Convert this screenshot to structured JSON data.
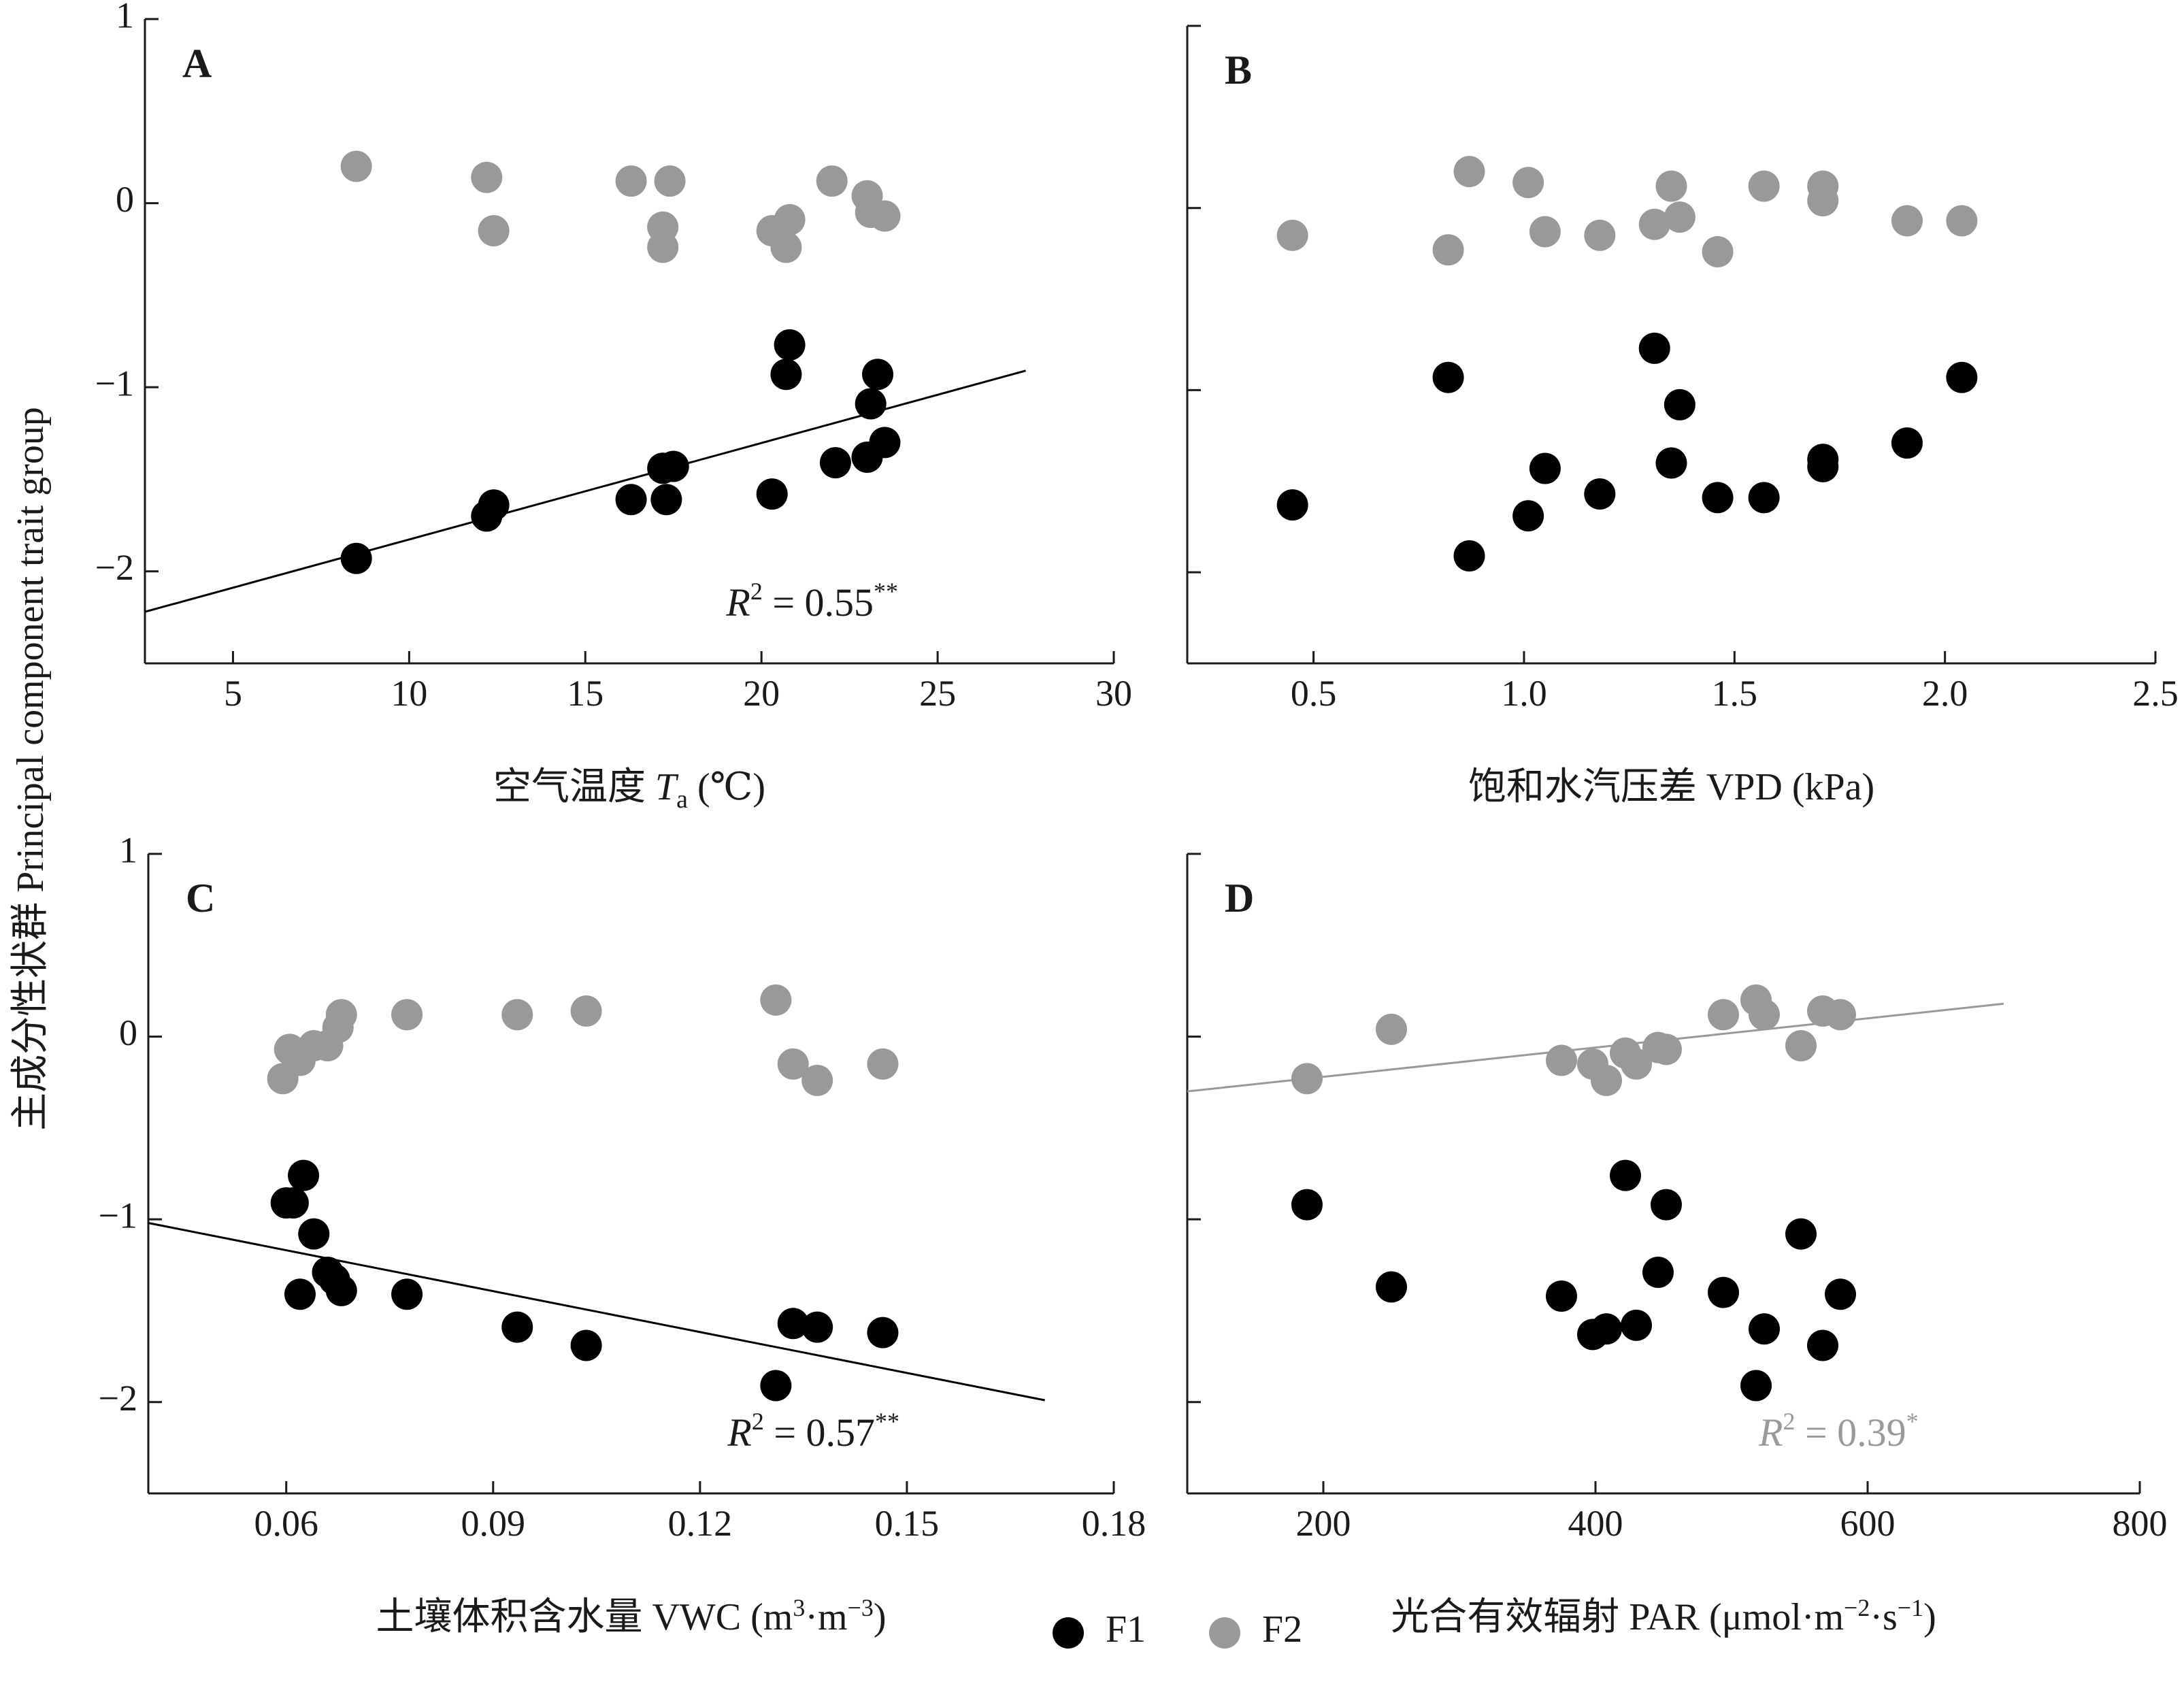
{
  "colors": {
    "F1": "#000000",
    "F2": "#999999",
    "axis": "#1a1a1a"
  },
  "ylabel": "主成分性状群 Principal component trait group",
  "legend": [
    {
      "name": "F1",
      "color": "#000000"
    },
    {
      "name": "F2",
      "color": "#999999"
    }
  ],
  "chart_data": [
    {
      "type": "scatter",
      "panel": "A",
      "xlabel": {
        "main": "空气温度 ",
        "var": "T",
        "sub": "a",
        "unit": " (℃)"
      },
      "xlim": [
        2.5,
        30
      ],
      "ylim": [
        -2.5,
        1
      ],
      "xticks": [
        5,
        10,
        15,
        20,
        25,
        30
      ],
      "yticks": [
        -2,
        -1,
        0,
        1
      ],
      "yticklabels": [
        "−2",
        "−1",
        "0",
        "1"
      ],
      "series": [
        {
          "name": "F1",
          "color": "#000000",
          "points": [
            [
              8.5,
              -1.93
            ],
            [
              12.2,
              -1.7
            ],
            [
              12.4,
              -1.64
            ],
            [
              16.3,
              -1.61
            ],
            [
              17.2,
              -1.44
            ],
            [
              17.3,
              -1.61
            ],
            [
              17.5,
              -1.43
            ],
            [
              20.3,
              -1.58
            ],
            [
              20.7,
              -0.93
            ],
            [
              20.8,
              -0.77
            ],
            [
              22.1,
              -1.41
            ],
            [
              23.0,
              -1.38
            ],
            [
              23.1,
              -1.09
            ],
            [
              23.3,
              -0.93
            ],
            [
              23.5,
              -1.3
            ]
          ]
        },
        {
          "name": "F2",
          "color": "#999999",
          "points": [
            [
              8.5,
              0.2
            ],
            [
              12.2,
              0.14
            ],
            [
              12.4,
              -0.15
            ],
            [
              16.3,
              0.12
            ],
            [
              17.2,
              -0.13
            ],
            [
              17.2,
              -0.24
            ],
            [
              17.4,
              0.12
            ],
            [
              20.3,
              -0.15
            ],
            [
              20.7,
              -0.24
            ],
            [
              20.8,
              -0.09
            ],
            [
              22.0,
              0.12
            ],
            [
              23.0,
              0.04
            ],
            [
              23.1,
              -0.05
            ],
            [
              23.5,
              -0.07
            ]
          ]
        }
      ],
      "fit": {
        "series": "F1",
        "color": "#000000",
        "x": [
          2.5,
          27.5
        ],
        "y": [
          -2.22,
          -0.91
        ]
      },
      "r2": {
        "prefix": "R",
        "exp": "2",
        "value": " = 0.55",
        "sig": "**",
        "color": "#1a1a1a"
      }
    },
    {
      "type": "scatter",
      "panel": "B",
      "xlabel": {
        "main": "饱和水汽压差 VPD (kPa)"
      },
      "xlim": [
        0.2,
        2.5
      ],
      "ylim": [
        -2.5,
        1
      ],
      "xticks": [
        0.5,
        1.0,
        1.5,
        2.0,
        2.5
      ],
      "xticklabels": [
        "0.5",
        "1.0",
        "1.5",
        "2.0",
        "2.5"
      ],
      "yticks": [
        -2,
        -1,
        0,
        1
      ],
      "series": [
        {
          "name": "F1",
          "color": "#000000",
          "points": [
            [
              0.45,
              -1.63
            ],
            [
              0.82,
              -0.93
            ],
            [
              0.87,
              -1.91
            ],
            [
              1.01,
              -1.69
            ],
            [
              1.05,
              -1.43
            ],
            [
              1.18,
              -1.57
            ],
            [
              1.31,
              -0.77
            ],
            [
              1.35,
              -1.4
            ],
            [
              1.37,
              -1.08
            ],
            [
              1.46,
              -1.59
            ],
            [
              1.57,
              -1.59
            ],
            [
              1.71,
              -1.38
            ],
            [
              1.71,
              -1.42
            ],
            [
              1.91,
              -1.29
            ],
            [
              2.04,
              -0.93
            ]
          ]
        },
        {
          "name": "F2",
          "color": "#999999",
          "points": [
            [
              0.45,
              -0.15
            ],
            [
              0.82,
              -0.23
            ],
            [
              0.87,
              0.2
            ],
            [
              1.01,
              0.14
            ],
            [
              1.05,
              -0.13
            ],
            [
              1.18,
              -0.15
            ],
            [
              1.31,
              -0.09
            ],
            [
              1.35,
              0.12
            ],
            [
              1.37,
              -0.05
            ],
            [
              1.46,
              -0.24
            ],
            [
              1.57,
              0.12
            ],
            [
              1.71,
              0.12
            ],
            [
              1.71,
              0.04
            ],
            [
              1.91,
              -0.07
            ],
            [
              2.04,
              -0.07
            ]
          ]
        }
      ]
    },
    {
      "type": "scatter",
      "panel": "C",
      "xlabel": {
        "main": "土壤体积含水量 VWC (m",
        "sup1": "3",
        "mid": "·m",
        "sup2": "−3",
        "end": ")"
      },
      "xlim": [
        0.04,
        0.18
      ],
      "ylim": [
        -2.5,
        1
      ],
      "xticks": [
        0.06,
        0.09,
        0.12,
        0.15,
        0.18
      ],
      "xticklabels": [
        "0.06",
        "0.09",
        "0.12",
        "0.15",
        "0.18"
      ],
      "yticks": [
        -2,
        -1,
        0,
        1
      ],
      "yticklabels": [
        "−2",
        "−1",
        "0",
        "1"
      ],
      "series": [
        {
          "name": "F1",
          "color": "#000000",
          "points": [
            [
              0.06,
              -0.91
            ],
            [
              0.061,
              -0.91
            ],
            [
              0.062,
              -1.41
            ],
            [
              0.0625,
              -0.76
            ],
            [
              0.064,
              -1.08
            ],
            [
              0.066,
              -1.29
            ],
            [
              0.067,
              -1.33
            ],
            [
              0.068,
              -1.39
            ],
            [
              0.0775,
              -1.41
            ],
            [
              0.0935,
              -1.59
            ],
            [
              0.1035,
              -1.69
            ],
            [
              0.131,
              -1.91
            ],
            [
              0.1335,
              -1.57
            ],
            [
              0.137,
              -1.59
            ],
            [
              0.1465,
              -1.62
            ]
          ]
        },
        {
          "name": "F2",
          "color": "#999999",
          "points": [
            [
              0.0595,
              -0.23
            ],
            [
              0.0605,
              -0.07
            ],
            [
              0.062,
              -0.13
            ],
            [
              0.064,
              -0.05
            ],
            [
              0.066,
              -0.05
            ],
            [
              0.0675,
              0.05
            ],
            [
              0.068,
              0.12
            ],
            [
              0.0775,
              0.12
            ],
            [
              0.0935,
              0.12
            ],
            [
              0.1035,
              0.14
            ],
            [
              0.131,
              0.2
            ],
            [
              0.1335,
              -0.15
            ],
            [
              0.137,
              -0.24
            ],
            [
              0.1465,
              -0.15
            ]
          ]
        }
      ],
      "fit": {
        "series": "F1",
        "color": "#000000",
        "x": [
          0.04,
          0.17
        ],
        "y": [
          -1.02,
          -1.99
        ]
      },
      "r2": {
        "prefix": "R",
        "exp": "2",
        "value": " = 0.57",
        "sig": "**",
        "color": "#1a1a1a"
      }
    },
    {
      "type": "scatter",
      "panel": "D",
      "xlabel": {
        "main": "光合有效辐射 PAR (μmol·m",
        "sup1": "−2",
        "mid": "·s",
        "sup2": "−1",
        "end": ")"
      },
      "xlim": [
        100,
        800
      ],
      "ylim": [
        -2.5,
        1
      ],
      "xticks": [
        200,
        400,
        600,
        800
      ],
      "yticks": [
        -2,
        -1,
        0,
        1
      ],
      "series": [
        {
          "name": "F1",
          "color": "#000000",
          "points": [
            [
              188,
              -0.92
            ],
            [
              250,
              -1.37
            ],
            [
              375,
              -1.42
            ],
            [
              398,
              -1.63
            ],
            [
              408,
              -1.6
            ],
            [
              422,
              -0.76
            ],
            [
              430,
              -1.58
            ],
            [
              446,
              -1.29
            ],
            [
              452,
              -0.92
            ],
            [
              494,
              -1.4
            ],
            [
              518,
              -1.91
            ],
            [
              524,
              -1.6
            ],
            [
              551,
              -1.08
            ],
            [
              567,
              -1.69
            ],
            [
              580,
              -1.41
            ]
          ]
        },
        {
          "name": "F2",
          "color": "#999999",
          "points": [
            [
              188,
              -0.23
            ],
            [
              250,
              0.04
            ],
            [
              375,
              -0.13
            ],
            [
              398,
              -0.15
            ],
            [
              408,
              -0.24
            ],
            [
              422,
              -0.09
            ],
            [
              430,
              -0.15
            ],
            [
              446,
              -0.06
            ],
            [
              452,
              -0.07
            ],
            [
              494,
              0.12
            ],
            [
              518,
              0.2
            ],
            [
              524,
              0.12
            ],
            [
              551,
              -0.05
            ],
            [
              567,
              0.14
            ],
            [
              580,
              0.12
            ]
          ]
        }
      ],
      "fit": {
        "series": "F2",
        "color": "#999999",
        "x": [
          100,
          700
        ],
        "y": [
          -0.3,
          0.18
        ]
      },
      "r2": {
        "prefix": "R",
        "exp": "2",
        "value": " = 0.39",
        "sig": "*",
        "color": "#999999"
      }
    }
  ]
}
